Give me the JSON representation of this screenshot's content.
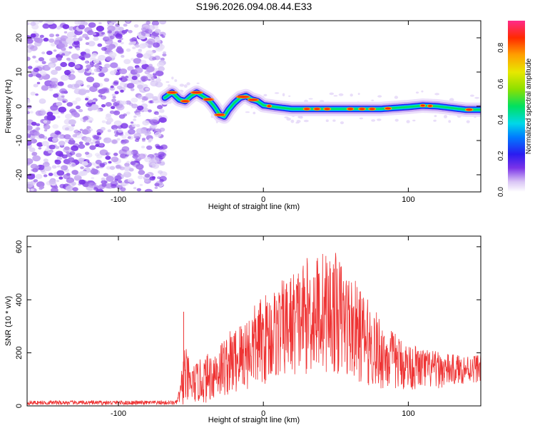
{
  "figure_title": "S196.2026.094.08.44.E33",
  "chart_data": [
    {
      "type": "heatmap",
      "title": "S196.2026.094.08.44.E33",
      "xlabel": "Height of straight line (km)",
      "ylabel": "Frequency (Hz)",
      "xlim": [
        -163,
        150
      ],
      "ylim": [
        -25,
        25
      ],
      "xticks": [
        -100,
        0,
        100
      ],
      "yticks": [
        -20,
        -10,
        0,
        10,
        20
      ],
      "noise_region_x": [
        -163,
        -68
      ],
      "ridge": {
        "x": [
          -68,
          -63,
          -58,
          -54,
          -50,
          -46,
          -42,
          -38,
          -34,
          -30,
          -27,
          -24,
          -20,
          -16,
          -12,
          -8,
          -4,
          0,
          10,
          20,
          30,
          40,
          50,
          60,
          70,
          80,
          90,
          100,
          110,
          120,
          130,
          140,
          150
        ],
        "y": [
          2.5,
          4,
          2,
          1.5,
          3,
          4,
          3,
          2,
          0,
          -2.5,
          -3,
          -1,
          1,
          2.5,
          3,
          2,
          1.5,
          0.3,
          -0.3,
          -0.8,
          -0.8,
          -0.8,
          -0.8,
          -0.8,
          -0.8,
          -0.8,
          -0.5,
          -0.2,
          0.2,
          0,
          -0.5,
          -1,
          -1
        ]
      },
      "colorbar": {
        "label": "Normalized spectral amplitude",
        "range": [
          0,
          0.95
        ],
        "ticks": [
          0.0,
          0.2,
          0.4,
          0.6,
          0.8
        ]
      }
    },
    {
      "type": "line",
      "xlabel": "Height of straight line (km)",
      "ylabel": "SNR (10 * v/v)",
      "xlim": [
        -163,
        150
      ],
      "ylim": [
        0,
        640
      ],
      "xticks": [
        -100,
        0,
        100
      ],
      "yticks": [
        0,
        200,
        400,
        600
      ],
      "series": [
        {
          "name": "SNR",
          "color": "#ee3333",
          "envelope_x": [
            -163,
            -60,
            -57,
            -55,
            -50,
            -40,
            -30,
            -20,
            -10,
            0,
            10,
            20,
            30,
            40,
            50,
            60,
            70,
            80,
            90,
            100,
            110,
            120,
            130,
            140,
            150
          ],
          "envelope_base": [
            12,
            12,
            50,
            120,
            80,
            100,
            140,
            170,
            210,
            250,
            280,
            310,
            340,
            360,
            350,
            300,
            250,
            200,
            170,
            150,
            140,
            135,
            135,
            140,
            145
          ],
          "envelope_amplitude": [
            8,
            8,
            40,
            130,
            70,
            90,
            110,
            130,
            150,
            170,
            180,
            200,
            220,
            230,
            230,
            200,
            170,
            140,
            110,
            90,
            80,
            70,
            60,
            55,
            55
          ]
        }
      ]
    }
  ],
  "colors": {
    "trace": "#ee3333",
    "noise": "#7a33e8",
    "axis": "#000000"
  }
}
